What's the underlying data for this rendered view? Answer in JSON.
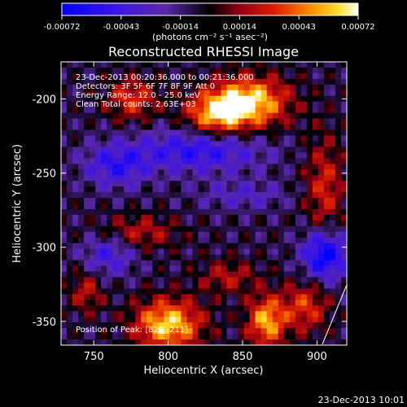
{
  "chart_data": {
    "type": "heatmap",
    "title": "Reconstructed RHESSI Image",
    "xlabel": "Heliocentric X (arcsec)",
    "ylabel": "Heliocentric Y (arcsec)",
    "xlim": [
      728,
      920
    ],
    "ylim": [
      -366,
      -175
    ],
    "x_ticks": [
      750,
      800,
      850,
      900
    ],
    "y_ticks": [
      -200,
      -250,
      -300,
      -350
    ],
    "colorbar": {
      "range": [
        -0.00072,
        0.00072
      ],
      "tick_labels": [
        "-0.00072",
        "-0.00043",
        "-0.00014",
        "0.00014",
        "0.00043",
        "0.00072"
      ],
      "unit_label": "(photons cm⁻² s⁻¹ asec⁻²)"
    },
    "annotation_lines": [
      "23-Dec-2013 00:20:36.000 to 00:21:36.000",
      "Detectors: 3F 5F 6F 7F 8F 9F  Att 0",
      "Energy Range: 12.0 - 25.0 keV",
      "Clean     Total counts: 2.63E+03"
    ],
    "peak_label": "Position of Peak: [829,-211]",
    "blobs": [
      {
        "x": 855,
        "y": -202,
        "sx": 18,
        "sy": 12,
        "v": 0.00072
      },
      {
        "x": 832,
        "y": -210,
        "sx": 14,
        "sy": 10,
        "v": 0.00058
      },
      {
        "x": 800,
        "y": -352,
        "sx": 16,
        "sy": 12,
        "v": 0.0007
      },
      {
        "x": 866,
        "y": -350,
        "sx": 9,
        "sy": 12,
        "v": 0.00062
      },
      {
        "x": 776,
        "y": -200,
        "sx": 12,
        "sy": 10,
        "v": 0.0004
      },
      {
        "x": 892,
        "y": -340,
        "sx": 11,
        "sy": 12,
        "v": 0.0004
      },
      {
        "x": 905,
        "y": -260,
        "sx": 9,
        "sy": 25,
        "v": 0.00035
      },
      {
        "x": 780,
        "y": -290,
        "sx": 18,
        "sy": 8,
        "v": 0.0003
      },
      {
        "x": 840,
        "y": -320,
        "sx": 14,
        "sy": 8,
        "v": 0.00028
      },
      {
        "x": 745,
        "y": -330,
        "sx": 8,
        "sy": 10,
        "v": 0.0003
      },
      {
        "x": 820,
        "y": -235,
        "sx": 30,
        "sy": 10,
        "v": -0.00045
      },
      {
        "x": 765,
        "y": -245,
        "sx": 15,
        "sy": 10,
        "v": -0.0004
      },
      {
        "x": 905,
        "y": -305,
        "sx": 10,
        "sy": 12,
        "v": -0.00068
      },
      {
        "x": 760,
        "y": -305,
        "sx": 12,
        "sy": 10,
        "v": -0.00035
      },
      {
        "x": 850,
        "y": -265,
        "sx": 20,
        "sy": 7,
        "v": -0.00022
      }
    ]
  },
  "footer": {
    "timestamp": "23-Dec-2013 10:01"
  }
}
